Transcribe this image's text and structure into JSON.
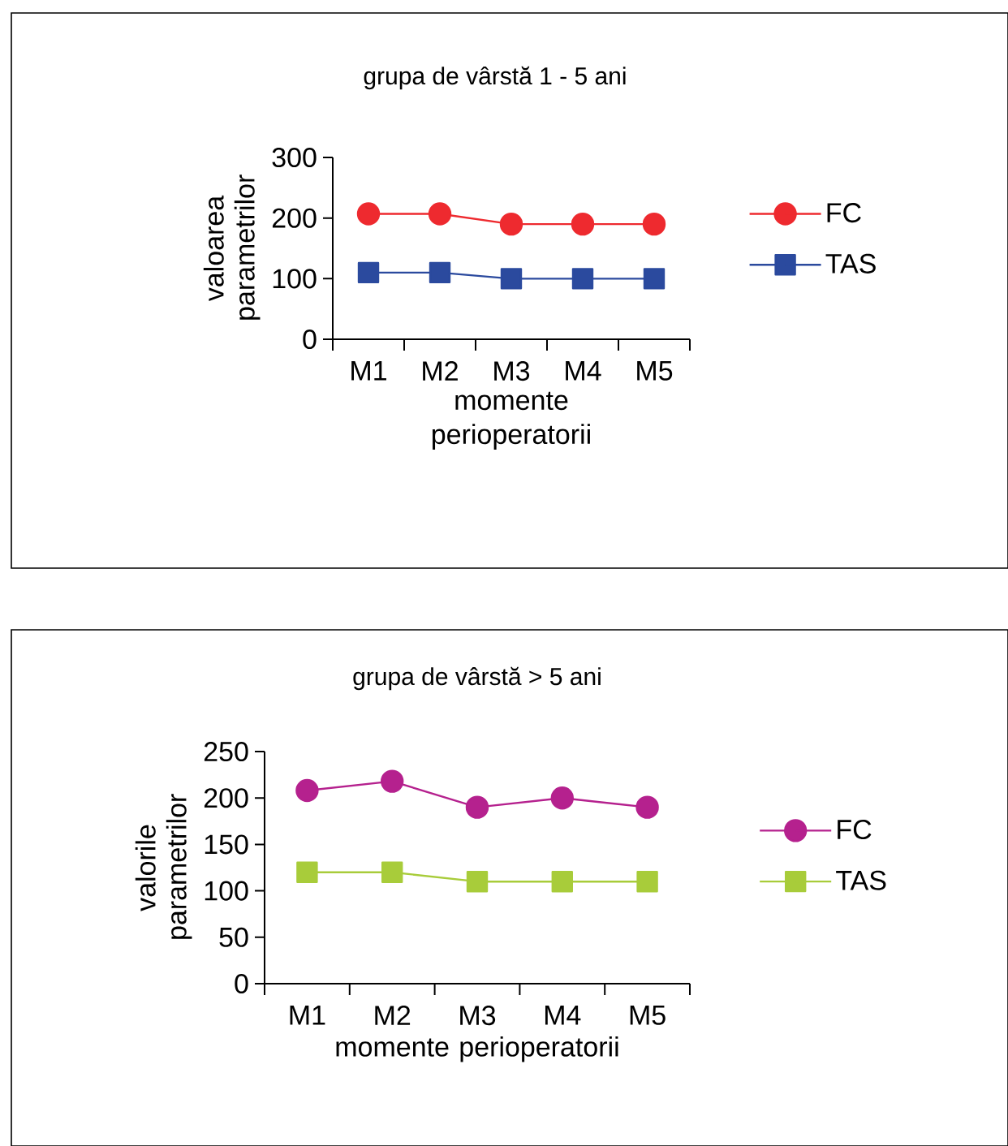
{
  "chart_data": [
    {
      "type": "line",
      "title": "grupa de vârstă 1 - 5 ani",
      "xlabel": "momente perioperatorii",
      "ylabel": "valoarea parametrilor",
      "categories": [
        "M1",
        "M2",
        "M3",
        "M4",
        "M5"
      ],
      "series": [
        {
          "name": "FC",
          "color": "#ee2a2f",
          "marker": "circle",
          "values": [
            207,
            207,
            190,
            190,
            190
          ]
        },
        {
          "name": "TAS",
          "color": "#2b4a9e",
          "marker": "square",
          "values": [
            110,
            110,
            100,
            100,
            100
          ]
        }
      ],
      "ylim": [
        0,
        300
      ],
      "yticks": [
        0,
        100,
        200,
        300
      ],
      "legend": "right",
      "grid": false
    },
    {
      "type": "line",
      "title": "grupa de vârstă > 5 ani",
      "xlabel": "momente perioperatorii",
      "ylabel": "valorile parametrilor",
      "categories": [
        "M1",
        "M2",
        "M3",
        "M4",
        "M5"
      ],
      "series": [
        {
          "name": "FC",
          "color": "#b5218e",
          "marker": "circle",
          "values": [
            208,
            218,
            190,
            200,
            190
          ]
        },
        {
          "name": "TAS",
          "color": "#a8cc3a",
          "marker": "square",
          "values": [
            120,
            120,
            110,
            110,
            110
          ]
        }
      ],
      "ylim": [
        0,
        250
      ],
      "yticks": [
        0,
        50,
        100,
        150,
        200,
        250
      ],
      "legend": "right",
      "grid": false
    }
  ]
}
